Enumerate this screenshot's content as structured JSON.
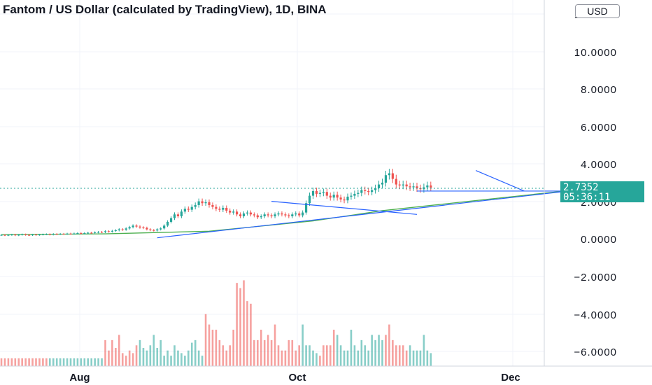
{
  "title": "Fantom / US Dollar (calculated by TradingView), 1D, BINA",
  "currency_button": "USD",
  "last_price": "2.7352",
  "countdown": "05:36:11",
  "colors": {
    "up": "#26a69a",
    "down": "#ef5350",
    "trendline": "#2962ff",
    "ma": "#4caf50",
    "grid": "#f0f3fa"
  },
  "chart_data": {
    "type": "candlestick",
    "title": "Fantom / US Dollar (calculated by TradingView), 1D, BINA",
    "xlabel": "",
    "ylabel": "",
    "ylim": [
      -7.1,
      13.0
    ],
    "y_ticks": [
      "12.0000",
      "10.0000",
      "8.0000",
      "6.0000",
      "4.0000",
      "2.0000",
      "0.0000",
      "−2.0000",
      "−4.0000",
      "−6.0000"
    ],
    "x_ticks": [
      "Aug",
      "Oct",
      "Dec"
    ],
    "last_price": 2.7352,
    "price_series": {
      "up_color": "#26a69a",
      "down_color": "#ef5350",
      "close": [
        0.2,
        0.18,
        0.2,
        0.22,
        0.18,
        0.21,
        0.23,
        0.2,
        0.19,
        0.22,
        0.2,
        0.22,
        0.23,
        0.24,
        0.22,
        0.25,
        0.24,
        0.26,
        0.25,
        0.27,
        0.26,
        0.28,
        0.3,
        0.28,
        0.3,
        0.32,
        0.31,
        0.34,
        0.36,
        0.35,
        0.4,
        0.38,
        0.42,
        0.45,
        0.5,
        0.48,
        0.55,
        0.62,
        0.7,
        0.65,
        0.6,
        0.58,
        0.5,
        0.46,
        0.44,
        0.5,
        0.55,
        0.7,
        0.9,
        1.1,
        1.3,
        1.2,
        1.45,
        1.6,
        1.55,
        1.7,
        1.8,
        2.0,
        1.9,
        1.95,
        1.8,
        1.7,
        1.6,
        1.55,
        1.65,
        1.5,
        1.4,
        1.45,
        1.3,
        1.2,
        1.35,
        1.4,
        1.3,
        1.25,
        1.15,
        1.2,
        1.3,
        1.25,
        1.2,
        1.3,
        1.35,
        1.3,
        1.25,
        1.2,
        1.3,
        1.35,
        1.25,
        1.4,
        1.9,
        2.3,
        2.55,
        2.4,
        2.45,
        2.5,
        2.3,
        2.2,
        2.35,
        2.2,
        2.1,
        2.05,
        2.25,
        2.3,
        2.4,
        2.45,
        2.6,
        2.55,
        2.5,
        2.6,
        2.7,
        2.9,
        3.0,
        3.4,
        3.5,
        3.2,
        2.9,
        2.85,
        2.9,
        2.8,
        2.75,
        2.8,
        2.7,
        2.65,
        2.75,
        2.85,
        2.7352
      ]
    },
    "moving_average": [
      [
        0,
        0.22
      ],
      [
        30,
        0.26
      ],
      [
        60,
        0.4
      ],
      [
        90,
        0.95
      ],
      [
        110,
        1.5
      ],
      [
        125,
        1.8
      ],
      [
        140,
        2.1
      ],
      [
        150,
        2.3
      ],
      [
        160,
        2.5
      ],
      [
        170,
        2.6
      ]
    ],
    "trendlines": [
      {
        "from": [
          45,
          0.05
        ],
        "to": [
          178,
          2.85
        ]
      },
      {
        "from": [
          78,
          2.0
        ],
        "to": [
          120,
          1.3
        ]
      },
      {
        "from": [
          120,
          2.55
        ],
        "to": [
          177,
          2.55
        ]
      },
      {
        "from": [
          137,
          3.65
        ],
        "to": [
          151,
          2.55
        ]
      }
    ],
    "volume_colors": [
      "down",
      "down",
      "down",
      "down",
      "down",
      "down",
      "down",
      "down",
      "down",
      "down",
      "down",
      "down",
      "down",
      "down",
      "up",
      "up",
      "up",
      "up",
      "up",
      "up",
      "up",
      "up",
      "up",
      "up",
      "up",
      "up",
      "up",
      "up",
      "up",
      "up",
      "down",
      "down",
      "down",
      "down",
      "down",
      "down",
      "down",
      "down",
      "down",
      "down",
      "up",
      "up",
      "up",
      "up",
      "up",
      "up",
      "up",
      "up",
      "up",
      "up",
      "up",
      "up",
      "up",
      "up",
      "up",
      "up",
      "up",
      "up",
      "up",
      "down",
      "down",
      "down",
      "down",
      "down",
      "down",
      "down",
      "down",
      "down",
      "down",
      "down",
      "down",
      "down",
      "down",
      "down",
      "down",
      "down",
      "down",
      "down",
      "down",
      "down",
      "down",
      "down",
      "down",
      "down",
      "down",
      "down",
      "down",
      "up",
      "up",
      "up",
      "up",
      "up",
      "down",
      "down",
      "down",
      "down",
      "down",
      "up",
      "up",
      "up",
      "up",
      "up",
      "up",
      "up",
      "up",
      "up",
      "up",
      "up",
      "up",
      "up",
      "up",
      "down",
      "down",
      "down",
      "down",
      "down",
      "down",
      "down",
      "up",
      "up",
      "up",
      "up",
      "up",
      "up",
      "up"
    ],
    "volume": [
      3,
      3,
      3,
      3,
      3,
      3,
      3,
      3,
      3,
      3,
      3,
      3,
      3,
      3,
      3,
      3,
      3,
      3,
      3,
      3,
      3,
      3,
      3,
      3,
      3,
      3,
      3,
      3,
      3,
      3,
      10,
      6,
      10,
      7,
      12,
      5,
      4,
      6,
      5,
      8,
      10,
      7,
      6,
      8,
      12,
      7,
      10,
      4,
      6,
      4,
      8,
      6,
      5,
      4,
      6,
      9,
      10,
      6,
      4,
      20,
      16,
      14,
      14,
      10,
      8,
      6,
      8,
      14,
      32,
      30,
      33,
      25,
      24,
      10,
      10,
      14,
      10,
      12,
      10,
      16,
      8,
      6,
      6,
      10,
      10,
      6,
      8,
      16,
      8,
      8,
      6,
      5,
      4,
      8,
      8,
      8,
      14,
      12,
      8,
      6,
      6,
      14,
      8,
      6,
      10,
      8,
      6,
      12,
      10,
      12,
      10,
      12,
      16,
      10,
      8,
      8,
      8,
      6,
      8,
      6,
      6,
      6,
      12,
      6,
      5
    ]
  }
}
